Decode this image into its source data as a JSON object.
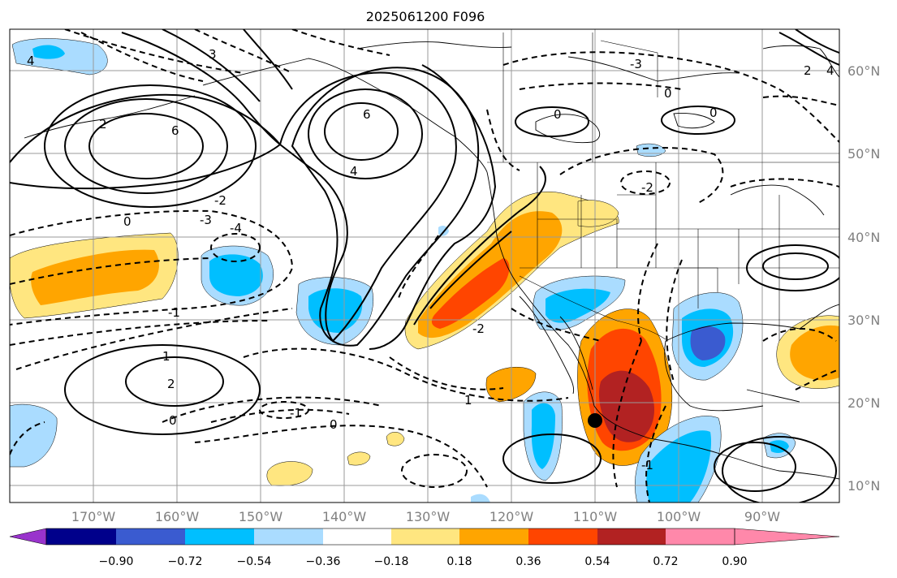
{
  "title": "2025061200 F096",
  "lon_labels": [
    "170°W",
    "160°W",
    "150°W",
    "140°W",
    "130°W",
    "120°W",
    "110°W",
    "100°W",
    "90°W"
  ],
  "lat_labels": [
    "60°N",
    "50°N",
    "40°N",
    "30°N",
    "20°N",
    "10°N"
  ],
  "colorbar": {
    "ticks": [
      "−0.90",
      "−0.72",
      "−0.54",
      "−0.36",
      "−0.18",
      "0.18",
      "0.36",
      "0.54",
      "0.72",
      "0.90"
    ],
    "colors": [
      "#9933cc",
      "#00008b",
      "#3a5bd0",
      "#00bfff",
      "#aadcff",
      "#ffffff",
      "#ffe680",
      "#ffa500",
      "#ff4500",
      "#b22222",
      "#ff88aa"
    ]
  },
  "contour_labels": [
    {
      "text": "4",
      "role": "contour-label"
    },
    {
      "text": "2",
      "role": "contour-label"
    },
    {
      "text": "3",
      "role": "contour-label"
    },
    {
      "text": "6",
      "role": "contour-label"
    },
    {
      "text": "6",
      "role": "contour-label"
    },
    {
      "text": "4",
      "role": "contour-label"
    },
    {
      "text": "0",
      "role": "contour-label"
    },
    {
      "text": "-1",
      "role": "contour-label"
    },
    {
      "text": "-2",
      "role": "contour-label"
    },
    {
      "text": "-3",
      "role": "contour-label"
    },
    {
      "text": "-4",
      "role": "contour-label"
    },
    {
      "text": "1",
      "role": "contour-label"
    },
    {
      "text": "2",
      "role": "contour-label"
    },
    {
      "text": "0",
      "role": "contour-label"
    },
    {
      "text": "-1",
      "role": "contour-label"
    },
    {
      "text": "0",
      "role": "contour-label"
    },
    {
      "text": "-2",
      "role": "contour-label"
    },
    {
      "text": "1",
      "role": "contour-label"
    },
    {
      "text": "0",
      "role": "contour-label"
    },
    {
      "text": "0",
      "role": "contour-label"
    },
    {
      "text": "-3",
      "role": "contour-label"
    },
    {
      "text": "0",
      "role": "contour-label"
    },
    {
      "text": "-1",
      "role": "contour-label"
    },
    {
      "text": "2",
      "role": "contour-label"
    },
    {
      "text": "4",
      "role": "contour-label"
    },
    {
      "text": "-2",
      "role": "contour-label"
    }
  ],
  "marker": {
    "name": "center-dot"
  }
}
